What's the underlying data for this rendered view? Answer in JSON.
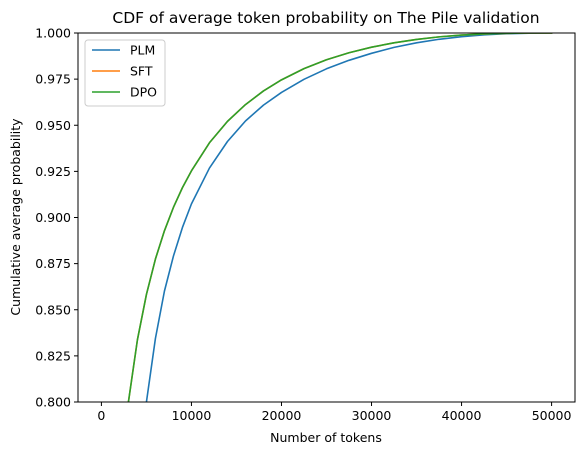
{
  "chart_data": {
    "type": "line",
    "title": "CDF of average token probability on The Pile validation",
    "xlabel": "Number of tokens",
    "ylabel": "Cumulative average probability",
    "xlim": [
      -2600,
      52600
    ],
    "ylim": [
      0.8,
      1.0
    ],
    "xticks": [
      0,
      10000,
      20000,
      30000,
      40000,
      50000
    ],
    "xtick_labels": [
      "0",
      "10000",
      "20000",
      "30000",
      "40000",
      "50000"
    ],
    "yticks": [
      0.8,
      0.825,
      0.85,
      0.875,
      0.9,
      0.925,
      0.95,
      0.975,
      1.0
    ],
    "ytick_labels": [
      "0.800",
      "0.825",
      "0.850",
      "0.875",
      "0.900",
      "0.925",
      "0.950",
      "0.975",
      "1.000"
    ],
    "grid": false,
    "legend_placement": "upper-left",
    "series": [
      {
        "name": "PLM",
        "color": "#1f77b4",
        "x": [
          5000,
          6000,
          7000,
          8000,
          9000,
          10000,
          12000,
          14000,
          16000,
          18000,
          20000,
          22500,
          25000,
          27500,
          30000,
          32500,
          35000,
          37500,
          40000,
          42500,
          45000,
          47500,
          50000
        ],
        "y": [
          0.8,
          0.8345,
          0.8601,
          0.8791,
          0.8946,
          0.9074,
          0.9268,
          0.9412,
          0.9523,
          0.9609,
          0.9678,
          0.9749,
          0.9806,
          0.9852,
          0.989,
          0.9922,
          0.9947,
          0.9966,
          0.998,
          0.999,
          0.9996,
          0.9999,
          1.0
        ]
      },
      {
        "name": "SFT",
        "color": "#ff7f0e",
        "x": [
          3000,
          4000,
          5000,
          6000,
          7000,
          8000,
          9000,
          10000,
          12000,
          14000,
          16000,
          18000,
          20000,
          22500,
          25000,
          27500,
          30000,
          32500,
          35000,
          37500,
          40000,
          42500,
          45000,
          47500,
          50000
        ],
        "y": [
          0.8,
          0.8337,
          0.8583,
          0.8775,
          0.8928,
          0.9055,
          0.9162,
          0.9253,
          0.9405,
          0.9521,
          0.9612,
          0.9686,
          0.9746,
          0.9807,
          0.9855,
          0.9893,
          0.9923,
          0.9947,
          0.9965,
          0.9979,
          0.9989,
          0.9995,
          0.9998,
          1.0,
          1.0
        ]
      },
      {
        "name": "DPO",
        "color": "#2ca02c",
        "x": [
          3000,
          4000,
          5000,
          6000,
          7000,
          8000,
          9000,
          10000,
          12000,
          14000,
          16000,
          18000,
          20000,
          22500,
          25000,
          27500,
          30000,
          32500,
          35000,
          37500,
          40000,
          42500,
          45000,
          47500,
          50000
        ],
        "y": [
          0.8,
          0.8337,
          0.8583,
          0.8775,
          0.8928,
          0.9055,
          0.9162,
          0.9253,
          0.9405,
          0.9521,
          0.9612,
          0.9686,
          0.9746,
          0.9807,
          0.9855,
          0.9893,
          0.9923,
          0.9947,
          0.9965,
          0.9979,
          0.9989,
          0.9995,
          0.9998,
          1.0,
          1.0
        ]
      }
    ]
  }
}
